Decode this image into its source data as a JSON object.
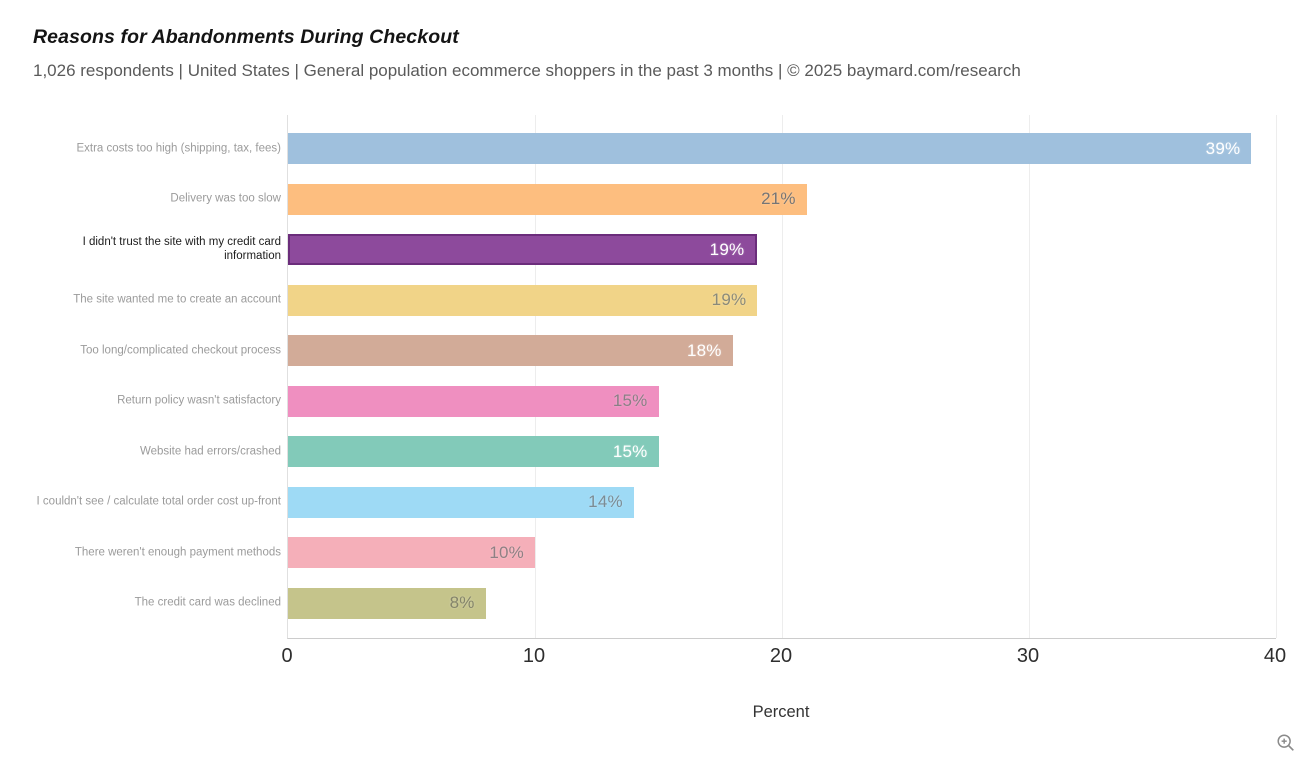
{
  "header": {
    "title": "Reasons for Abandonments During Checkout",
    "subtitle": "1,026 respondents  |  United States  |  General population ecommerce shoppers in the past 3 months | © 2025 baymard.com/research"
  },
  "chart_data": {
    "type": "bar",
    "orientation": "horizontal",
    "title": "Reasons for Abandonments During Checkout",
    "xlabel": "Percent",
    "ylabel": "",
    "xlim": [
      0,
      40
    ],
    "x_ticks": [
      0,
      10,
      20,
      30,
      40
    ],
    "grid": true,
    "legend": "none",
    "categories": [
      "Extra costs too high (shipping, tax, fees)",
      "Delivery was too slow",
      "I didn't trust the site with my credit card information",
      "The site wanted me to create an account",
      "Too long/complicated checkout process",
      "Return policy wasn't satisfactory",
      "Website had errors/crashed",
      "I couldn't see / calculate total order cost up-front",
      "There weren't enough payment methods",
      "The credit card was declined"
    ],
    "values": [
      39,
      21,
      19,
      19,
      18,
      15,
      15,
      14,
      10,
      8
    ],
    "value_labels": [
      "39%",
      "21%",
      "19%",
      "19%",
      "18%",
      "15%",
      "15%",
      "14%",
      "10%",
      "8%"
    ],
    "bar_colors": [
      "#9fc0dd",
      "#fdbe7f",
      "#8d4a9c",
      "#f1d488",
      "#d2ab98",
      "#ef8fc0",
      "#82cab9",
      "#9edaf5",
      "#f5afb9",
      "#c5c48b"
    ],
    "value_label_colors": [
      "#ffffff",
      "#757575",
      "#ffffff",
      "#8a8a7a",
      "#ffffff",
      "#8a7f85",
      "#ffffff",
      "#7d8c94",
      "#8f8084",
      "#84846a"
    ],
    "highlighted_index": 2,
    "highlight_border_color": "#6b2d7b"
  },
  "icons": {
    "zoom_in_icon": "magnifier-plus",
    "zoom_in_color": "#8a8a8a"
  }
}
